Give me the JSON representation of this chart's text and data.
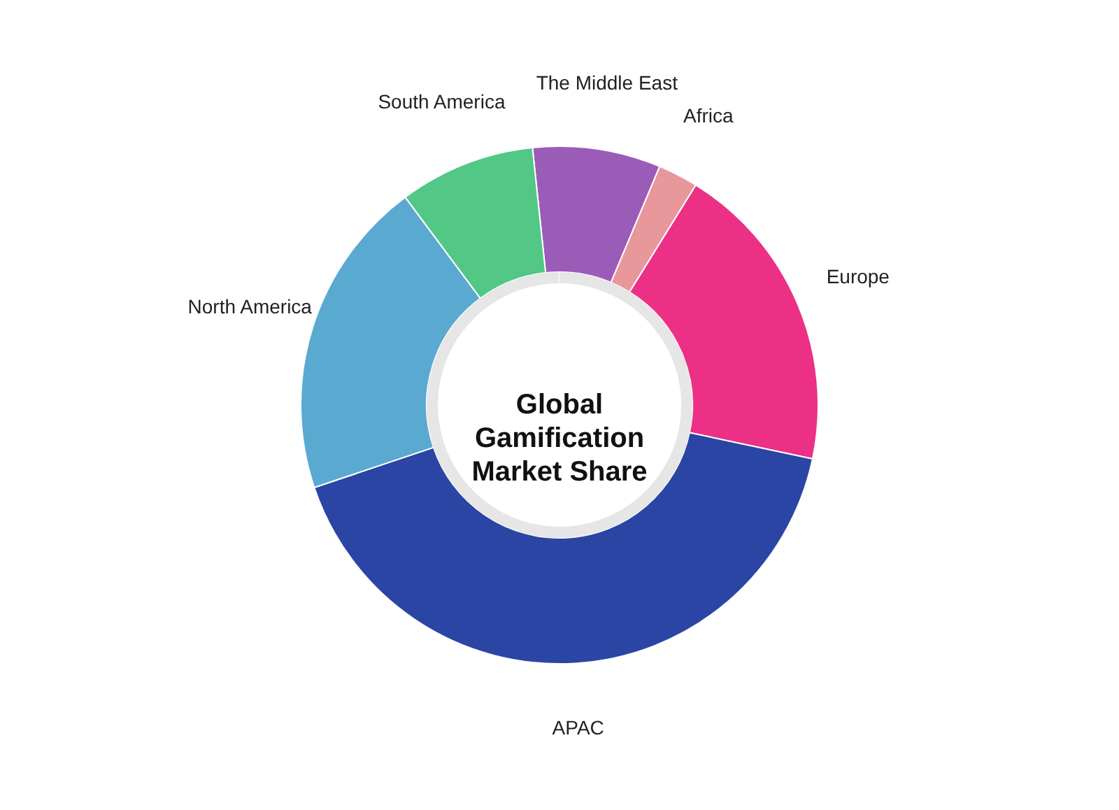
{
  "chart_data": {
    "type": "donut",
    "title": "Global\nGamification\nMarket Share",
    "categories": [
      "The Middle East",
      "Africa",
      "Europe",
      "APAC",
      "North America",
      "South America"
    ],
    "values": [
      8,
      2.5,
      19.5,
      41.5,
      20,
      8.5
    ],
    "colors": [
      "#9b5cb8",
      "#e8979a",
      "#ec3085",
      "#2a45a3",
      "#5aa9d1",
      "#52c786"
    ]
  }
}
